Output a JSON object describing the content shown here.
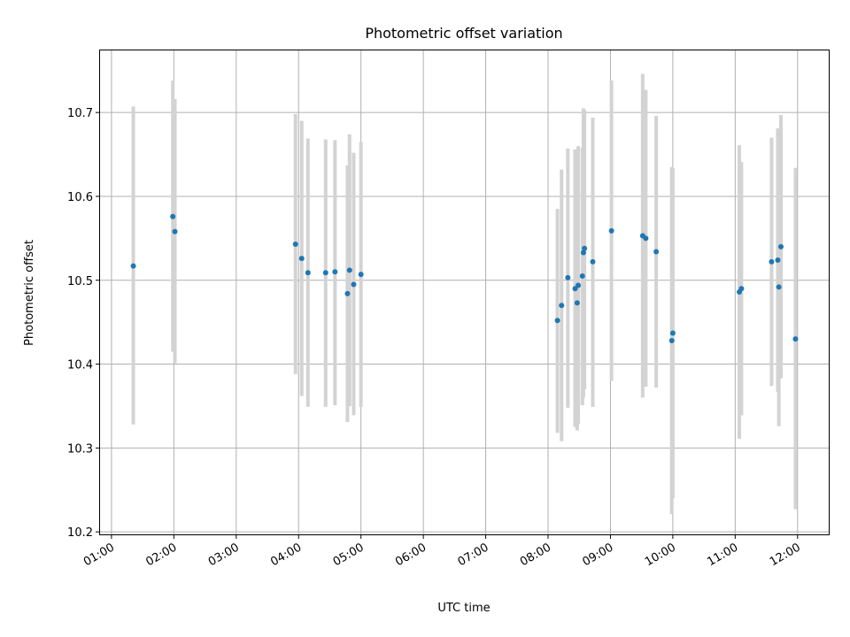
{
  "chart_data": {
    "type": "scatter",
    "title": "Photometric offset variation",
    "xlabel": "UTC time",
    "ylabel": "Photometric offset",
    "x_unit": "UTC time (HH:MM)",
    "xlim": [
      "00:49",
      "12:30"
    ],
    "ylim": [
      10.197,
      10.774
    ],
    "xticks": [
      "01:00",
      "02:00",
      "03:00",
      "04:00",
      "05:00",
      "06:00",
      "07:00",
      "08:00",
      "09:00",
      "10:00",
      "11:00",
      "12:00"
    ],
    "yticks": [
      10.2,
      10.3,
      10.4,
      10.5,
      10.6,
      10.7
    ],
    "ytick_labels": [
      "10.2",
      "10.3",
      "10.4",
      "10.5",
      "10.6",
      "10.7"
    ],
    "grid": true,
    "marker_color": "#1f77b4",
    "errorbar_color": "#d3d3d3",
    "points": [
      {
        "t": "01:21",
        "y": 10.517,
        "lo": 10.328,
        "hi": 10.707
      },
      {
        "t": "01:59",
        "y": 10.576,
        "lo": 10.415,
        "hi": 10.738
      },
      {
        "t": "02:01",
        "y": 10.558,
        "lo": 10.401,
        "hi": 10.716
      },
      {
        "t": "03:57",
        "y": 10.543,
        "lo": 10.388,
        "hi": 10.698
      },
      {
        "t": "04:03",
        "y": 10.526,
        "lo": 10.362,
        "hi": 10.69
      },
      {
        "t": "04:09",
        "y": 10.509,
        "lo": 10.349,
        "hi": 10.669
      },
      {
        "t": "04:26",
        "y": 10.509,
        "lo": 10.349,
        "hi": 10.668
      },
      {
        "t": "04:35",
        "y": 10.51,
        "lo": 10.351,
        "hi": 10.667
      },
      {
        "t": "04:47",
        "y": 10.484,
        "lo": 10.331,
        "hi": 10.637
      },
      {
        "t": "04:49",
        "y": 10.512,
        "lo": 10.35,
        "hi": 10.674
      },
      {
        "t": "04:53",
        "y": 10.495,
        "lo": 10.339,
        "hi": 10.652
      },
      {
        "t": "05:00",
        "y": 10.507,
        "lo": 10.349,
        "hi": 10.665
      },
      {
        "t": "08:09",
        "y": 10.452,
        "lo": 10.318,
        "hi": 10.585
      },
      {
        "t": "08:13",
        "y": 10.47,
        "lo": 10.308,
        "hi": 10.632
      },
      {
        "t": "08:19",
        "y": 10.503,
        "lo": 10.348,
        "hi": 10.657
      },
      {
        "t": "08:26",
        "y": 10.49,
        "lo": 10.325,
        "hi": 10.656
      },
      {
        "t": "08:28",
        "y": 10.473,
        "lo": 10.321,
        "hi": 10.624
      },
      {
        "t": "08:29",
        "y": 10.494,
        "lo": 10.329,
        "hi": 10.66
      },
      {
        "t": "08:33",
        "y": 10.505,
        "lo": 10.351,
        "hi": 10.658
      },
      {
        "t": "08:34",
        "y": 10.533,
        "lo": 10.36,
        "hi": 10.705
      },
      {
        "t": "08:35",
        "y": 10.538,
        "lo": 10.37,
        "hi": 10.703
      },
      {
        "t": "08:43",
        "y": 10.522,
        "lo": 10.349,
        "hi": 10.694
      },
      {
        "t": "09:01",
        "y": 10.559,
        "lo": 10.38,
        "hi": 10.738
      },
      {
        "t": "09:31",
        "y": 10.553,
        "lo": 10.36,
        "hi": 10.746
      },
      {
        "t": "09:34",
        "y": 10.55,
        "lo": 10.373,
        "hi": 10.727
      },
      {
        "t": "09:44",
        "y": 10.534,
        "lo": 10.372,
        "hi": 10.696
      },
      {
        "t": "09:59",
        "y": 10.428,
        "lo": 10.221,
        "hi": 10.635
      },
      {
        "t": "10:00",
        "y": 10.437,
        "lo": 10.24,
        "hi": 10.634
      },
      {
        "t": "11:04",
        "y": 10.486,
        "lo": 10.311,
        "hi": 10.661
      },
      {
        "t": "11:06",
        "y": 10.49,
        "lo": 10.339,
        "hi": 10.641
      },
      {
        "t": "11:35",
        "y": 10.522,
        "lo": 10.374,
        "hi": 10.67
      },
      {
        "t": "11:41",
        "y": 10.524,
        "lo": 10.367,
        "hi": 10.681
      },
      {
        "t": "11:42",
        "y": 10.492,
        "lo": 10.326,
        "hi": 10.658
      },
      {
        "t": "11:44",
        "y": 10.54,
        "lo": 10.383,
        "hi": 10.697
      },
      {
        "t": "11:58",
        "y": 10.43,
        "lo": 10.227,
        "hi": 10.634
      }
    ]
  }
}
